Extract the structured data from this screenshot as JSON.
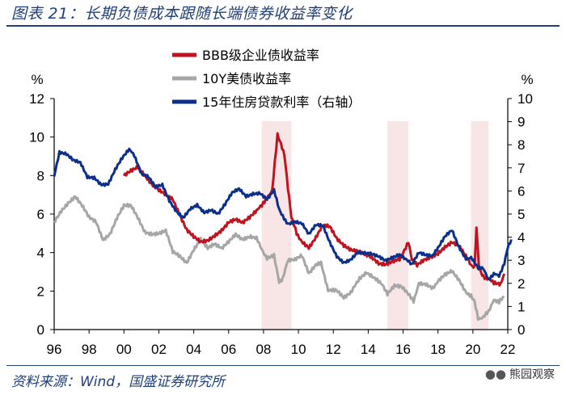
{
  "header": {
    "title": "图表 21：长期负债成本跟随长端债券收益率变化"
  },
  "footer": {
    "source": "资料来源：Wind，国盛证券研究所",
    "watermark": "熊园观察",
    "watermark_icon": "wechat-icon"
  },
  "chart_data": {
    "type": "line",
    "left_axis": {
      "unit": "%",
      "range": [
        0,
        12
      ],
      "ticks": [
        "0",
        "2",
        "4",
        "6",
        "8",
        "10",
        "12"
      ]
    },
    "right_axis": {
      "unit": "%",
      "range": [
        0,
        10
      ],
      "ticks": [
        "0",
        "1",
        "2",
        "3",
        "4",
        "5",
        "6",
        "7",
        "8",
        "9",
        "10"
      ]
    },
    "x_axis": {
      "range": [
        1996,
        2022
      ],
      "ticks": [
        "96",
        "98",
        "00",
        "02",
        "04",
        "06",
        "08",
        "10",
        "12",
        "14",
        "16",
        "18",
        "20",
        "22"
      ]
    },
    "shaded_periods": [
      [
        2007.9,
        2009.6
      ],
      [
        2015.1,
        2016.3
      ],
      [
        2019.9,
        2020.9
      ]
    ],
    "series": [
      {
        "name": "BBB级企业债收益率",
        "color": "#c0121f",
        "axis": "left",
        "points": [
          [
            2000.0,
            8.0
          ],
          [
            2000.4,
            8.3
          ],
          [
            2000.8,
            8.5
          ],
          [
            2001.2,
            8.0
          ],
          [
            2001.6,
            7.5
          ],
          [
            2002.0,
            7.2
          ],
          [
            2002.4,
            7.0
          ],
          [
            2002.8,
            6.8
          ],
          [
            2003.2,
            6.0
          ],
          [
            2003.6,
            5.2
          ],
          [
            2004.0,
            4.8
          ],
          [
            2004.4,
            4.5
          ],
          [
            2004.8,
            4.6
          ],
          [
            2005.2,
            4.9
          ],
          [
            2005.6,
            5.2
          ],
          [
            2006.0,
            5.6
          ],
          [
            2006.4,
            5.7
          ],
          [
            2006.8,
            5.5
          ],
          [
            2007.2,
            5.8
          ],
          [
            2007.6,
            6.2
          ],
          [
            2007.9,
            6.4
          ],
          [
            2008.2,
            6.9
          ],
          [
            2008.5,
            7.2
          ],
          [
            2008.8,
            10.1
          ],
          [
            2009.0,
            9.6
          ],
          [
            2009.2,
            9.0
          ],
          [
            2009.4,
            7.3
          ],
          [
            2009.6,
            5.8
          ],
          [
            2009.9,
            5.0
          ],
          [
            2010.2,
            4.6
          ],
          [
            2010.6,
            4.3
          ],
          [
            2011.0,
            4.8
          ],
          [
            2011.4,
            5.4
          ],
          [
            2011.8,
            5.3
          ],
          [
            2012.2,
            4.7
          ],
          [
            2012.6,
            4.4
          ],
          [
            2013.0,
            4.2
          ],
          [
            2013.4,
            4.1
          ],
          [
            2013.8,
            3.9
          ],
          [
            2014.2,
            3.7
          ],
          [
            2014.6,
            3.4
          ],
          [
            2015.0,
            3.4
          ],
          [
            2015.4,
            3.6
          ],
          [
            2015.8,
            3.7
          ],
          [
            2016.0,
            4.0
          ],
          [
            2016.3,
            4.6
          ],
          [
            2016.5,
            3.7
          ],
          [
            2016.8,
            3.3
          ],
          [
            2017.2,
            3.6
          ],
          [
            2017.6,
            3.8
          ],
          [
            2018.0,
            4.0
          ],
          [
            2018.4,
            4.3
          ],
          [
            2018.8,
            4.5
          ],
          [
            2019.2,
            4.3
          ],
          [
            2019.6,
            3.8
          ],
          [
            2019.9,
            3.3
          ],
          [
            2020.1,
            3.2
          ],
          [
            2020.2,
            5.4
          ],
          [
            2020.35,
            3.2
          ],
          [
            2020.6,
            2.8
          ],
          [
            2020.9,
            2.6
          ],
          [
            2021.2,
            2.4
          ],
          [
            2021.6,
            2.3
          ],
          [
            2021.8,
            2.9
          ]
        ]
      },
      {
        "name": "10Y美债收益率",
        "color": "#a6a6a6",
        "axis": "left",
        "points": [
          [
            1996.0,
            5.6
          ],
          [
            1996.4,
            6.2
          ],
          [
            1996.8,
            6.6
          ],
          [
            1997.2,
            6.9
          ],
          [
            1997.6,
            6.4
          ],
          [
            1998.0,
            5.8
          ],
          [
            1998.4,
            5.6
          ],
          [
            1998.8,
            4.7
          ],
          [
            1999.2,
            5.0
          ],
          [
            1999.6,
            5.8
          ],
          [
            2000.0,
            6.4
          ],
          [
            2000.4,
            6.4
          ],
          [
            2000.8,
            5.8
          ],
          [
            2001.2,
            5.1
          ],
          [
            2001.6,
            5.0
          ],
          [
            2002.0,
            5.0
          ],
          [
            2002.4,
            5.1
          ],
          [
            2002.8,
            4.0
          ],
          [
            2003.2,
            3.8
          ],
          [
            2003.6,
            3.5
          ],
          [
            2004.0,
            4.2
          ],
          [
            2004.4,
            4.7
          ],
          [
            2004.8,
            4.2
          ],
          [
            2005.2,
            4.4
          ],
          [
            2005.6,
            4.2
          ],
          [
            2006.0,
            4.6
          ],
          [
            2006.4,
            5.0
          ],
          [
            2006.8,
            4.7
          ],
          [
            2007.2,
            4.8
          ],
          [
            2007.6,
            4.7
          ],
          [
            2007.9,
            4.2
          ],
          [
            2008.2,
            3.7
          ],
          [
            2008.6,
            3.9
          ],
          [
            2008.9,
            2.4
          ],
          [
            2009.1,
            2.6
          ],
          [
            2009.4,
            3.6
          ],
          [
            2009.8,
            3.6
          ],
          [
            2010.2,
            3.8
          ],
          [
            2010.6,
            2.9
          ],
          [
            2011.0,
            3.4
          ],
          [
            2011.3,
            3.4
          ],
          [
            2011.7,
            2.0
          ],
          [
            2012.2,
            2.0
          ],
          [
            2012.6,
            1.6
          ],
          [
            2013.0,
            1.9
          ],
          [
            2013.5,
            2.6
          ],
          [
            2013.9,
            2.9
          ],
          [
            2014.3,
            2.7
          ],
          [
            2014.8,
            2.3
          ],
          [
            2015.1,
            1.9
          ],
          [
            2015.5,
            2.3
          ],
          [
            2015.9,
            2.2
          ],
          [
            2016.3,
            1.8
          ],
          [
            2016.6,
            1.5
          ],
          [
            2016.9,
            2.4
          ],
          [
            2017.3,
            2.4
          ],
          [
            2017.7,
            2.2
          ],
          [
            2018.0,
            2.5
          ],
          [
            2018.4,
            2.9
          ],
          [
            2018.8,
            3.1
          ],
          [
            2019.2,
            2.6
          ],
          [
            2019.6,
            1.9
          ],
          [
            2019.9,
            1.8
          ],
          [
            2020.1,
            1.5
          ],
          [
            2020.3,
            0.6
          ],
          [
            2020.6,
            0.65
          ],
          [
            2020.9,
            0.9
          ],
          [
            2021.2,
            1.6
          ],
          [
            2021.5,
            1.4
          ],
          [
            2021.8,
            1.7
          ]
        ]
      },
      {
        "name": "15年住房贷款利率（右轴）",
        "color": "#0b2f8a",
        "axis": "right",
        "points": [
          [
            1996.0,
            6.6
          ],
          [
            1996.3,
            7.7
          ],
          [
            1996.7,
            7.6
          ],
          [
            1997.1,
            7.3
          ],
          [
            1997.5,
            7.2
          ],
          [
            1997.9,
            6.6
          ],
          [
            1998.3,
            6.6
          ],
          [
            1998.7,
            6.3
          ],
          [
            1999.1,
            6.3
          ],
          [
            1999.5,
            6.9
          ],
          [
            1999.9,
            7.4
          ],
          [
            2000.3,
            7.8
          ],
          [
            2000.6,
            7.5
          ],
          [
            2001.0,
            6.7
          ],
          [
            2001.4,
            6.6
          ],
          [
            2001.8,
            6.2
          ],
          [
            2002.2,
            6.3
          ],
          [
            2002.6,
            5.6
          ],
          [
            2003.0,
            5.1
          ],
          [
            2003.4,
            4.8
          ],
          [
            2003.8,
            5.2
          ],
          [
            2004.2,
            5.4
          ],
          [
            2004.6,
            5.1
          ],
          [
            2005.0,
            5.2
          ],
          [
            2005.4,
            5.0
          ],
          [
            2005.8,
            5.4
          ],
          [
            2006.2,
            5.9
          ],
          [
            2006.6,
            6.1
          ],
          [
            2007.0,
            5.8
          ],
          [
            2007.4,
            5.9
          ],
          [
            2007.8,
            5.9
          ],
          [
            2008.2,
            5.6
          ],
          [
            2008.6,
            6.0
          ],
          [
            2008.9,
            5.2
          ],
          [
            2009.1,
            4.9
          ],
          [
            2009.4,
            4.6
          ],
          [
            2009.8,
            4.7
          ],
          [
            2010.2,
            4.6
          ],
          [
            2010.6,
            4.1
          ],
          [
            2011.0,
            4.5
          ],
          [
            2011.4,
            4.5
          ],
          [
            2011.8,
            3.8
          ],
          [
            2012.2,
            3.2
          ],
          [
            2012.6,
            2.9
          ],
          [
            2013.0,
            3.0
          ],
          [
            2013.4,
            3.3
          ],
          [
            2013.8,
            3.3
          ],
          [
            2014.2,
            3.3
          ],
          [
            2014.6,
            3.2
          ],
          [
            2015.0,
            3.0
          ],
          [
            2015.4,
            3.1
          ],
          [
            2015.8,
            3.2
          ],
          [
            2016.2,
            3.0
          ],
          [
            2016.5,
            2.8
          ],
          [
            2016.9,
            3.3
          ],
          [
            2017.3,
            3.2
          ],
          [
            2017.7,
            3.2
          ],
          [
            2018.0,
            3.5
          ],
          [
            2018.4,
            4.0
          ],
          [
            2018.8,
            4.3
          ],
          [
            2019.2,
            3.6
          ],
          [
            2019.6,
            3.1
          ],
          [
            2019.9,
            3.1
          ],
          [
            2020.3,
            2.7
          ],
          [
            2020.6,
            2.6
          ],
          [
            2020.9,
            2.2
          ],
          [
            2021.2,
            2.4
          ],
          [
            2021.5,
            2.3
          ],
          [
            2021.8,
            2.9
          ],
          [
            2022.0,
            3.6
          ],
          [
            2022.2,
            3.9
          ]
        ]
      }
    ]
  }
}
